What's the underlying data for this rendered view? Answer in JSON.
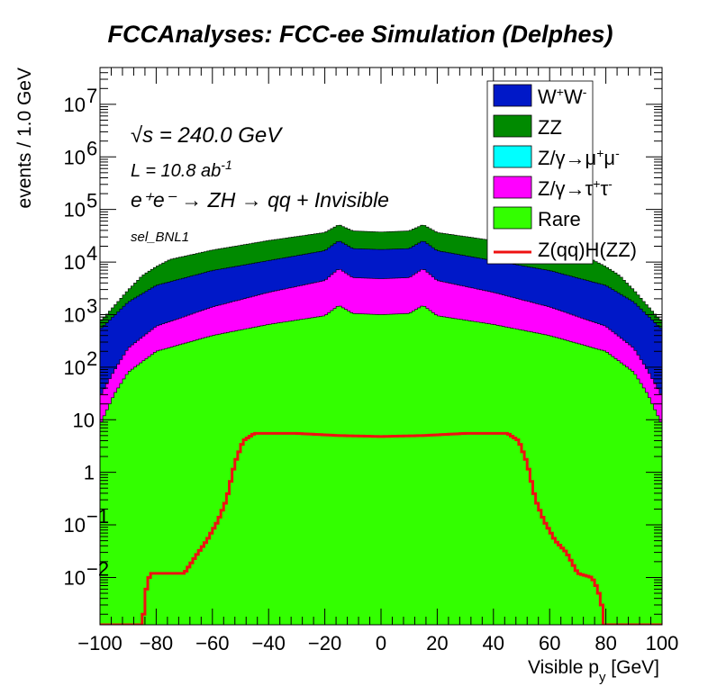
{
  "chart_data": {
    "type": "histogram-stacked",
    "title": "FCCAnalyses: FCC-ee Simulation (Delphes)",
    "xlabel": "Visible p_y [GeV]",
    "ylabel": "events / 1.0 GeV",
    "xlim": [
      -100,
      100
    ],
    "ylim_log10": [
      -2.9,
      7.7
    ],
    "y_scale": "log",
    "bin_width": 1.0,
    "xticks": [
      -100,
      -80,
      -60,
      -40,
      -20,
      0,
      20,
      40,
      60,
      80,
      100
    ],
    "yticks": [
      {
        "exp": -2,
        "label": "10",
        "sup": "-2"
      },
      {
        "exp": -1,
        "label": "10",
        "sup": "-1"
      },
      {
        "exp": 0,
        "label": "1",
        "sup": ""
      },
      {
        "exp": 1,
        "label": "10",
        "sup": ""
      },
      {
        "exp": 2,
        "label": "10",
        "sup": "2"
      },
      {
        "exp": 3,
        "label": "10",
        "sup": "3"
      },
      {
        "exp": 4,
        "label": "10",
        "sup": "4"
      },
      {
        "exp": 5,
        "label": "10",
        "sup": "5"
      },
      {
        "exp": 6,
        "label": "10",
        "sup": "6"
      },
      {
        "exp": 7,
        "label": "10",
        "sup": "7"
      }
    ],
    "annotations": {
      "energy": "√s = 240.0 GeV",
      "lumi": "L = 10.8 ab",
      "lumi_sup": "-1",
      "process": "e⁺e⁻ → ZH → qq + Invisible",
      "selection": "sel_BNL1"
    },
    "series": [
      {
        "name": "W⁺W⁻",
        "color": "#0018c8",
        "style": "fill",
        "profile": [
          [
            -100,
            500
          ],
          [
            -90,
            1500
          ],
          [
            -80,
            3000
          ],
          [
            -60,
            5500
          ],
          [
            -40,
            8000
          ],
          [
            -20,
            12000
          ],
          [
            -15,
            18000
          ],
          [
            -10,
            13000
          ],
          [
            0,
            12500
          ],
          [
            10,
            13000
          ],
          [
            15,
            18000
          ],
          [
            20,
            12000
          ],
          [
            40,
            8000
          ],
          [
            60,
            5500
          ],
          [
            80,
            3000
          ],
          [
            90,
            1500
          ],
          [
            100,
            500
          ]
        ]
      },
      {
        "name": "ZZ",
        "color": "#008a00",
        "style": "fill",
        "profile": [
          [
            -100,
            200
          ],
          [
            -90,
            1200
          ],
          [
            -85,
            3000
          ],
          [
            -75,
            7000
          ],
          [
            -60,
            10000
          ],
          [
            -40,
            15000
          ],
          [
            -20,
            20000
          ],
          [
            -15,
            26000
          ],
          [
            -10,
            21000
          ],
          [
            0,
            20000
          ],
          [
            10,
            21000
          ],
          [
            15,
            26000
          ],
          [
            20,
            20000
          ],
          [
            40,
            15000
          ],
          [
            60,
            10000
          ],
          [
            75,
            7000
          ],
          [
            85,
            3000
          ],
          [
            90,
            1200
          ],
          [
            100,
            200
          ]
        ]
      },
      {
        "name": "Z/γ→μ⁺μ⁻",
        "color": "#00ffff",
        "style": "fill",
        "profile": [
          [
            -16,
            0
          ],
          [
            -15.5,
            4
          ],
          [
            -13,
            3
          ],
          [
            -10,
            1
          ],
          [
            -8,
            0.5
          ],
          [
            -5,
            0.05
          ],
          [
            -4,
            0.05
          ],
          [
            -3,
            0.8
          ],
          [
            -1,
            3
          ],
          [
            1,
            3
          ],
          [
            3,
            1
          ],
          [
            5,
            0.05
          ],
          [
            7,
            0.5
          ],
          [
            9,
            2
          ],
          [
            12,
            4
          ],
          [
            15.5,
            4
          ],
          [
            16,
            0
          ]
        ]
      },
      {
        "name": "Z/γ→τ⁺τ⁻",
        "color": "#ff00ff",
        "style": "fill",
        "profile": [
          [
            -100,
            20
          ],
          [
            -90,
            150
          ],
          [
            -80,
            400
          ],
          [
            -60,
            1000
          ],
          [
            -40,
            2000
          ],
          [
            -20,
            3500
          ],
          [
            -15,
            6000
          ],
          [
            -10,
            4000
          ],
          [
            0,
            3800
          ],
          [
            10,
            4000
          ],
          [
            15,
            6000
          ],
          [
            20,
            3500
          ],
          [
            40,
            2000
          ],
          [
            60,
            1000
          ],
          [
            80,
            400
          ],
          [
            90,
            150
          ],
          [
            100,
            20
          ]
        ]
      },
      {
        "name": "Rare",
        "color": "#33ff00",
        "style": "fill",
        "profile": [
          [
            -100,
            8
          ],
          [
            -95,
            30
          ],
          [
            -90,
            80
          ],
          [
            -80,
            200
          ],
          [
            -60,
            400
          ],
          [
            -40,
            650
          ],
          [
            -20,
            950
          ],
          [
            -15,
            1500
          ],
          [
            -10,
            1050
          ],
          [
            0,
            1000
          ],
          [
            10,
            1050
          ],
          [
            15,
            1500
          ],
          [
            20,
            950
          ],
          [
            40,
            650
          ],
          [
            60,
            400
          ],
          [
            80,
            200
          ],
          [
            90,
            80
          ],
          [
            95,
            30
          ],
          [
            100,
            8
          ]
        ]
      },
      {
        "name": "Z(qq)H(ZZ)",
        "color": "#ee1111",
        "style": "line",
        "profile": [
          [
            -85,
            0
          ],
          [
            -82,
            0.012
          ],
          [
            -78,
            0.012
          ],
          [
            -70,
            0.012
          ],
          [
            -65,
            0.03
          ],
          [
            -62,
            0.05
          ],
          [
            -58,
            0.12
          ],
          [
            -55,
            0.3
          ],
          [
            -52,
            1.5
          ],
          [
            -49,
            4
          ],
          [
            -45,
            5.5
          ],
          [
            -30,
            5.5
          ],
          [
            -15,
            5
          ],
          [
            0,
            4.8
          ],
          [
            15,
            5
          ],
          [
            30,
            5.5
          ],
          [
            45,
            5.5
          ],
          [
            49,
            4
          ],
          [
            52,
            1.5
          ],
          [
            55,
            0.3
          ],
          [
            58,
            0.12
          ],
          [
            62,
            0.05
          ],
          [
            66,
            0.03
          ],
          [
            70,
            0.012
          ],
          [
            75,
            0.01
          ],
          [
            80,
            0
          ]
        ]
      }
    ]
  },
  "legend": {
    "items": [
      {
        "label": "W",
        "sup1": "+",
        "mid": "W",
        "sup2": "-",
        "color": "#0018c8",
        "kind": "box"
      },
      {
        "label": "ZZ",
        "color": "#008a00",
        "kind": "box"
      },
      {
        "label": "Z/γ→μ",
        "sup1": "+",
        "mid": "μ",
        "sup2": "-",
        "color": "#00ffff",
        "kind": "box"
      },
      {
        "label": "Z/γ→τ",
        "sup1": "+",
        "mid": "τ",
        "sup2": "-",
        "color": "#ff00ff",
        "kind": "box"
      },
      {
        "label": "Rare",
        "color": "#33ff00",
        "kind": "box"
      },
      {
        "label": "Z(qq)H(ZZ)",
        "color": "#ee1111",
        "kind": "line"
      }
    ]
  }
}
